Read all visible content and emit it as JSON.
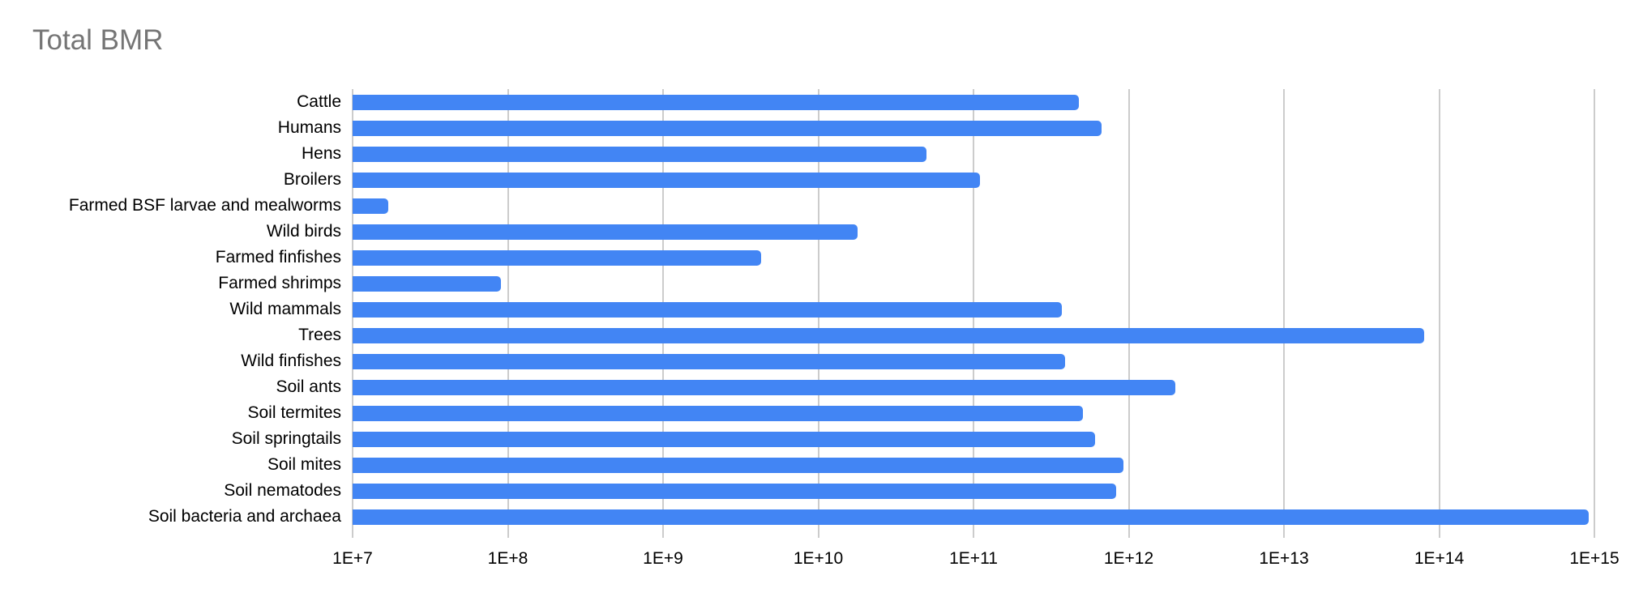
{
  "colors": {
    "bar": "#4285F4",
    "gridline": "#cccccc",
    "title_text": "#757575",
    "axis_text": "#000000"
  },
  "chart_data": {
    "type": "bar",
    "orientation": "horizontal",
    "title": "Total BMR",
    "x_scale": "log10",
    "x_min": 10000000.0,
    "x_max": 1000000000000000.0,
    "x_tick_labels": [
      "1E+7",
      "1E+8",
      "1E+9",
      "1E+10",
      "1E+11",
      "1E+12",
      "1E+13",
      "1E+14",
      "1E+15"
    ],
    "grid": true,
    "legend": "none",
    "categories": [
      "Cattle",
      "Humans",
      "Hens",
      "Broilers",
      "Farmed BSF larvae and mealworms",
      "Wild birds",
      "Farmed finfishes",
      "Farmed shrimps",
      "Wild mammals",
      "Trees",
      "Wild finfishes",
      "Soil ants",
      "Soil termites",
      "Soil springtails",
      "Soil mites",
      "Soil nematodes",
      "Soil bacteria and archaea"
    ],
    "values": [
      480000000000.0,
      670000000000.0,
      50000000000.0,
      110000000000.0,
      17000000.0,
      18000000000.0,
      4300000000.0,
      90000000.0,
      370000000000.0,
      80000000000000.0,
      390000000000.0,
      2000000000000.0,
      510000000000.0,
      610000000000.0,
      930000000000.0,
      830000000000.0,
      920000000000000.0
    ]
  }
}
